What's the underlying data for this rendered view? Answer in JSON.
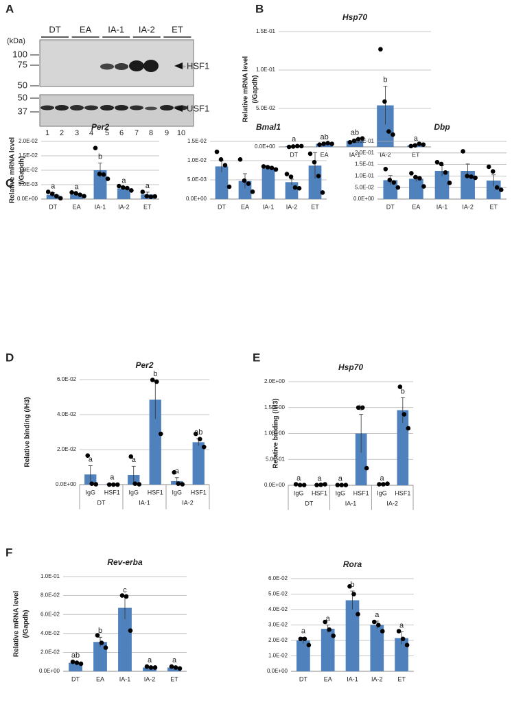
{
  "panel_labels": [
    "A",
    "B",
    "C",
    "D",
    "E",
    "F"
  ],
  "blot": {
    "unit": "(kDa)",
    "groups": [
      "DT",
      "EA",
      "IA-1",
      "IA-2",
      "ET"
    ],
    "markers_top": [
      100,
      75,
      50
    ],
    "markers_bottom": [
      50,
      37
    ],
    "proteins": [
      "HSF1",
      "USF1"
    ],
    "lanes": [
      1,
      2,
      3,
      4,
      5,
      6,
      7,
      8,
      9,
      10
    ]
  },
  "chart_data": [
    {
      "type": "bar",
      "title": "Hsp70",
      "ylabel": [
        "Relative mRNA level",
        "(/Gapdh)"
      ],
      "color": "#4f81bd",
      "grid": true,
      "categories": [
        "DT",
        "EA",
        "IA-1",
        "IA-2",
        "ET"
      ],
      "values": [
        0.001,
        0.004,
        0.008,
        0.054,
        0.002
      ],
      "errors": [
        0.0005,
        0.0006,
        0.002,
        0.025,
        0.0007
      ],
      "points": [
        [
          0,
          0.0005,
          0.001,
          0.001
        ],
        [
          0.003,
          0.004,
          0.005,
          0.004
        ],
        [
          0.006,
          0.008,
          0.01,
          0.011
        ],
        [
          0.127,
          0.059,
          0.02,
          0.016
        ],
        [
          0.001,
          0.002,
          0.004,
          0.003
        ]
      ],
      "letters": [
        "a",
        "ab",
        "ab",
        "b",
        "a"
      ],
      "ylim": [
        0,
        0.15
      ],
      "yticks": [
        {
          "value": 0,
          "label": "0.0E+00"
        },
        {
          "value": 0.05,
          "label": "5.0E-02"
        },
        {
          "value": 0.1,
          "label": "1.0E-01"
        },
        {
          "value": 0.15,
          "label": "1.5E-01"
        }
      ]
    },
    {
      "type": "bar",
      "title": "Per2",
      "ylabel": [
        "Relative mRNA level",
        "(/Gapdh)"
      ],
      "color": "#4f81bd",
      "grid": true,
      "categories": [
        "DT",
        "EA",
        "IA-1",
        "IA-2",
        "ET"
      ],
      "values": [
        0.0015,
        0.0016,
        0.01,
        0.0037,
        0.0016
      ],
      "errors": [
        0.0007,
        0.0004,
        0.0025,
        0.0004,
        0.0008
      ],
      "points": [
        [
          0.0025,
          0.0018,
          0.001,
          0.0003
        ],
        [
          0.0023,
          0.002,
          0.0015,
          0.001
        ],
        [
          0.0177,
          0.0087,
          0.0085,
          0.007
        ],
        [
          0.0045,
          0.004,
          0.0038,
          0.003
        ],
        [
          0.0025,
          0.001,
          0.0008,
          0.0009
        ]
      ],
      "letters": [
        "a",
        "a",
        "b",
        "a",
        "a"
      ],
      "ylim": [
        0,
        0.02
      ],
      "yticks": [
        {
          "value": 0,
          "label": "0.0E+00"
        },
        {
          "value": 0.005,
          "label": "5.0E-03"
        },
        {
          "value": 0.01,
          "label": "1.0E-02"
        },
        {
          "value": 0.015,
          "label": "1.5E-02"
        },
        {
          "value": 0.02,
          "label": "2.0E-02"
        }
      ]
    },
    {
      "type": "bar",
      "title": "Bmal1",
      "color": "#4f81bd",
      "grid": true,
      "categories": [
        "DT",
        "EA",
        "IA-1",
        "IA-2",
        "ET"
      ],
      "values": [
        0.0085,
        0.0047,
        0.008,
        0.0044,
        0.0087
      ],
      "errors": [
        0.0015,
        0.0019,
        0.0003,
        0.0008,
        0.0034
      ],
      "points": [
        [
          0.0123,
          0.0103,
          0.0088,
          0.0032
        ],
        [
          0.0103,
          0.0048,
          0.004,
          0.0019
        ],
        [
          0.0085,
          0.0083,
          0.0081,
          0.0077
        ],
        [
          0.0065,
          0.0058,
          0.003,
          0.0028
        ],
        [
          0.0118,
          0.0096,
          0.006,
          0.0017
        ]
      ],
      "ylim": [
        0,
        0.015
      ],
      "yticks": [
        {
          "value": 0,
          "label": "0.0E+00"
        },
        {
          "value": 0.005,
          "label": "5.0E-03"
        },
        {
          "value": 0.01,
          "label": "1.0E-02"
        },
        {
          "value": 0.015,
          "label": "1.5E-02"
        }
      ]
    },
    {
      "type": "bar",
      "title": "Dbp",
      "color": "#4f81bd",
      "grid": true,
      "categories": [
        "DT",
        "EA",
        "IA-1",
        "IA-2",
        "ET"
      ],
      "values": [
        0.082,
        0.088,
        0.122,
        0.122,
        0.08
      ],
      "errors": [
        0.02,
        0.012,
        0.022,
        0.03,
        0.025
      ],
      "points": [
        [
          0.13,
          0.083,
          0.072,
          0.05
        ],
        [
          0.112,
          0.095,
          0.09,
          0.055
        ],
        [
          0.16,
          0.152,
          0.115,
          0.07
        ],
        [
          0.207,
          0.1,
          0.097,
          0.092
        ],
        [
          0.14,
          0.12,
          0.05,
          0.04
        ]
      ],
      "ylim": [
        0,
        0.25
      ],
      "yticks": [
        {
          "value": 0,
          "label": "0.0E+00"
        },
        {
          "value": 0.05,
          "label": "5.0E-02"
        },
        {
          "value": 0.1,
          "label": "1.0E-01"
        },
        {
          "value": 0.15,
          "label": "1.5E-01"
        },
        {
          "value": 0.2,
          "label": "2.0E-01"
        },
        {
          "value": 0.25,
          "label": "2.5E-01"
        }
      ]
    },
    {
      "type": "bar",
      "title": "Per2",
      "ylabel": [
        "Relative binding (/H3)"
      ],
      "color": "#4f81bd",
      "grid": true,
      "categories": [
        "IgG",
        "HSF1",
        "IgG",
        "HSF1",
        "IgG",
        "HSF1"
      ],
      "groups": [
        "DT",
        "IA-1",
        "IA-2"
      ],
      "values": [
        0.0058,
        0.0005,
        0.0055,
        0.0485,
        0.002,
        0.0242
      ],
      "errors": [
        0.005,
        0,
        0.005,
        0.011,
        0.002,
        0.002
      ],
      "points": [
        [
          0.0166,
          0.0005,
          0.0002
        ],
        [
          0,
          0,
          0
        ],
        [
          0.016,
          0.0005,
          0.0002
        ],
        [
          0.0598,
          0.0588,
          0.029
        ],
        [
          0.007,
          0.0005,
          0.0002
        ],
        [
          0.029,
          0.026,
          0.0215
        ]
      ],
      "letters": [
        "a",
        "a",
        "a",
        "b",
        "a",
        "ab"
      ],
      "ylim": [
        0,
        0.06
      ],
      "yticks": [
        {
          "value": 0,
          "label": "0.0E+00"
        },
        {
          "value": 0.02,
          "label": "2.0E-02"
        },
        {
          "value": 0.04,
          "label": "4.0E-02"
        },
        {
          "value": 0.06,
          "label": "6.0E-02"
        }
      ]
    },
    {
      "type": "bar",
      "title": "Hsp70",
      "ylabel": [
        "Relative binding (/H3)"
      ],
      "color": "#4f81bd",
      "grid": true,
      "categories": [
        "IgG",
        "HSF1",
        "IgG",
        "HSF1",
        "IgG",
        "HSF1"
      ],
      "groups": [
        "DT",
        "IA-1",
        "IA-2"
      ],
      "values": [
        0.01,
        0.005,
        0.005,
        1.0,
        0.01,
        1.45
      ],
      "errors": [
        0,
        0,
        0,
        0.37,
        0,
        0.24
      ],
      "points": [
        [
          0.02,
          0.005,
          0.005
        ],
        [
          0.005,
          0.01,
          0.02
        ],
        [
          0.005,
          0.005,
          0.005
        ],
        [
          1.5,
          1.5,
          0.33
        ],
        [
          0.02,
          0.02,
          0.03
        ],
        [
          1.9,
          1.37,
          1.1
        ]
      ],
      "letters": [
        "a",
        "a",
        "a",
        "b",
        "a",
        "b"
      ],
      "ylim": [
        0,
        2
      ],
      "yticks": [
        {
          "value": 0,
          "label": "0.0E+00"
        },
        {
          "value": 0.5,
          "label": "5.0E-01"
        },
        {
          "value": 1,
          "label": "1.0E+00"
        },
        {
          "value": 1.5,
          "label": "1.5E+00"
        },
        {
          "value": 2,
          "label": "2.0E+00"
        }
      ]
    },
    {
      "type": "bar",
      "title": "Rev-erba",
      "ylabel": [
        "Relative mRNA level",
        "(/Gapdh)"
      ],
      "color": "#4f81bd",
      "grid": true,
      "categories": [
        "DT",
        "EA",
        "IA-1",
        "IA-2",
        "ET"
      ],
      "values": [
        0.009,
        0.031,
        0.067,
        0.004,
        0.004
      ],
      "errors": [
        0.001,
        0.005,
        0.012,
        0.001,
        0.001
      ],
      "points": [
        [
          0.01,
          0.009,
          0.008
        ],
        [
          0.038,
          0.03,
          0.025
        ],
        [
          0.08,
          0.079,
          0.043
        ],
        [
          0.005,
          0.004,
          0.004
        ],
        [
          0.005,
          0.004,
          0.003
        ]
      ],
      "letters": [
        "ab",
        "b",
        "c",
        "a",
        "a"
      ],
      "ylim": [
        0,
        0.1
      ],
      "yticks": [
        {
          "value": 0,
          "label": "0.0E+00"
        },
        {
          "value": 0.02,
          "label": "2.0E-02"
        },
        {
          "value": 0.04,
          "label": "4.0E-02"
        },
        {
          "value": 0.06,
          "label": "6.0E-02"
        },
        {
          "value": 0.08,
          "label": "8.0E-02"
        },
        {
          "value": 0.1,
          "label": "1.0E-01"
        }
      ]
    },
    {
      "type": "bar",
      "title": "Rora",
      "color": "#4f81bd",
      "grid": true,
      "categories": [
        "DT",
        "EA",
        "IA-1",
        "IA-2",
        "ET"
      ],
      "values": [
        0.02,
        0.0275,
        0.046,
        0.03,
        0.0215
      ],
      "errors": [
        0.002,
        0.0025,
        0.006,
        0.0025,
        0.004
      ],
      "points": [
        [
          0.021,
          0.021,
          0.017
        ],
        [
          0.032,
          0.027,
          0.023
        ],
        [
          0.055,
          0.05,
          0.037
        ],
        [
          0.032,
          0.03,
          0.026
        ],
        [
          0.026,
          0.021,
          0.017
        ]
      ],
      "letters": [
        "a",
        "a",
        "b",
        "a",
        "a"
      ],
      "ylim": [
        0,
        0.06
      ],
      "yticks": [
        {
          "value": 0,
          "label": "0.0E+00"
        },
        {
          "value": 0.01,
          "label": "1.0E-02"
        },
        {
          "value": 0.02,
          "label": "2.0E-02"
        },
        {
          "value": 0.03,
          "label": "3.0E-02"
        },
        {
          "value": 0.04,
          "label": "4.0E-02"
        },
        {
          "value": 0.05,
          "label": "5.0E-02"
        },
        {
          "value": 0.06,
          "label": "6.0E-02"
        }
      ]
    }
  ]
}
